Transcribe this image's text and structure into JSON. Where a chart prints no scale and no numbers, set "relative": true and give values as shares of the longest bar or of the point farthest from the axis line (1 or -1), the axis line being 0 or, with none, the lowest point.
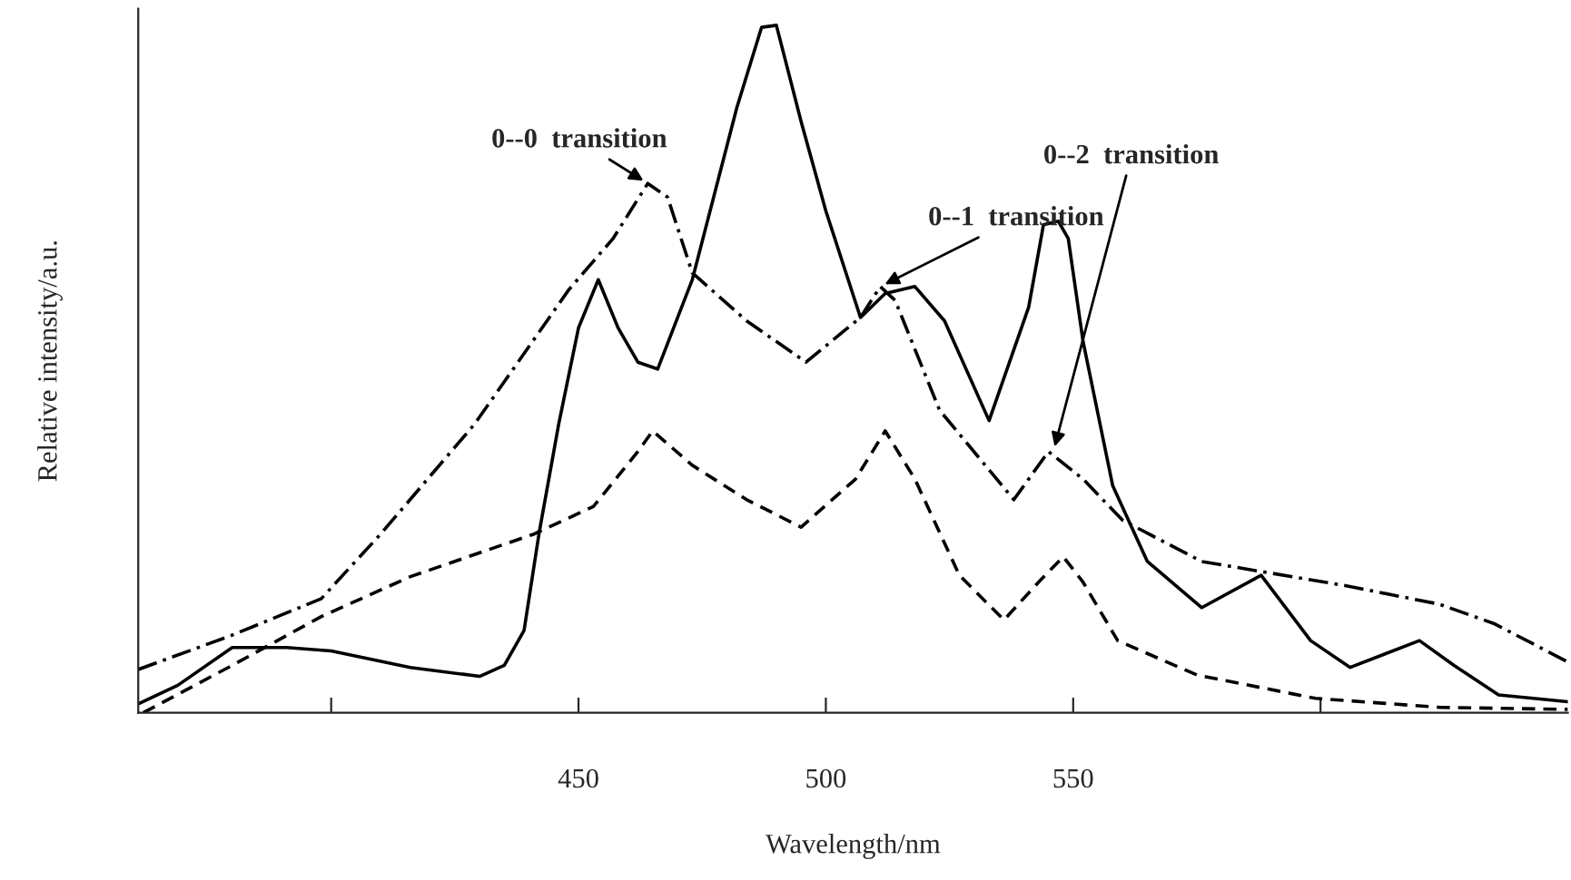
{
  "chart_data": {
    "type": "line",
    "relative": true,
    "xlabel": "Wavelength/nm",
    "ylabel": "Relative intensity/a.u.",
    "xlim": [
      361,
      650
    ],
    "xticks": [
      {
        "value": 400,
        "label": null
      },
      450,
      500,
      550,
      {
        "value": 600,
        "label": null
      }
    ],
    "grid": false,
    "legend": false,
    "marker": "none",
    "series": [
      {
        "color": "#000000",
        "line_style": "solid",
        "x": [
          361,
          369,
          380,
          391,
          400,
          416,
          430,
          435,
          439,
          442,
          446,
          450,
          454,
          458,
          462,
          466,
          473,
          482,
          487,
          490,
          495,
          500,
          507,
          512,
          518,
          524,
          533,
          541,
          544,
          547,
          549,
          552,
          558,
          565,
          576,
          588,
          598,
          606,
          620,
          627,
          636,
          650
        ],
        "values": [
          0.013,
          0.04,
          0.095,
          0.095,
          0.09,
          0.066,
          0.053,
          0.069,
          0.12,
          0.26,
          0.42,
          0.56,
          0.63,
          0.56,
          0.51,
          0.5,
          0.63,
          0.88,
          0.997,
          1.0,
          0.86,
          0.73,
          0.575,
          0.61,
          0.62,
          0.57,
          0.425,
          0.59,
          0.71,
          0.715,
          0.69,
          0.54,
          0.33,
          0.22,
          0.153,
          0.2,
          0.105,
          0.066,
          0.105,
          0.069,
          0.026,
          0.016
        ]
      },
      {
        "color": "#000000",
        "line_style": "dashdot",
        "x": [
          361,
          380,
          398,
          410,
          429,
          448,
          457,
          464,
          468,
          473,
          484,
          496,
          507,
          511,
          514,
          523,
          538,
          545,
          552,
          560,
          576,
          605,
          624,
          635,
          650
        ],
        "values": [
          0.063,
          0.113,
          0.166,
          0.26,
          0.42,
          0.615,
          0.69,
          0.77,
          0.75,
          0.64,
          0.57,
          0.51,
          0.575,
          0.62,
          0.6,
          0.44,
          0.31,
          0.38,
          0.34,
          0.28,
          0.22,
          0.185,
          0.158,
          0.13,
          0.074
        ]
      },
      {
        "color": "#000000",
        "line_style": "dashed",
        "x": [
          362,
          380,
          398,
          416,
          441,
          453,
          462,
          465,
          473,
          484,
          495,
          506,
          512,
          518,
          527,
          536,
          543,
          548,
          552,
          559,
          575,
          599,
          624,
          650
        ],
        "values": [
          0.0,
          0.069,
          0.14,
          0.198,
          0.26,
          0.3,
          0.38,
          0.41,
          0.36,
          0.31,
          0.27,
          0.34,
          0.41,
          0.34,
          0.2,
          0.135,
          0.19,
          0.227,
          0.19,
          0.105,
          0.055,
          0.021,
          0.008,
          0.005
        ]
      }
    ],
    "annotations": [
      {
        "text": "0--0  transition",
        "x": 464,
        "y": 0.77
      },
      {
        "text": "0--1  transition",
        "x": 511,
        "y": 0.62
      },
      {
        "text": "0--2  transition",
        "x": 546,
        "y": 0.38
      }
    ]
  }
}
